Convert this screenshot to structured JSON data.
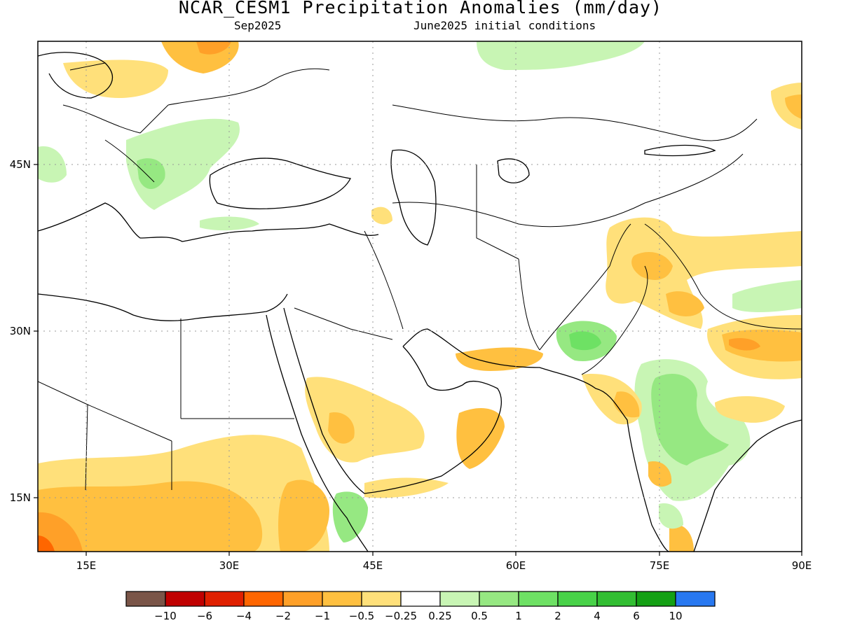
{
  "header": {
    "title": "NCAR_CESM1 Precipitation Anomalies (mm/day)",
    "valid_month": "Sep2025",
    "initial_conditions": "June2025 initial conditions"
  },
  "map": {
    "lon_ticks": [
      "15E",
      "30E",
      "45E",
      "60E",
      "75E",
      "90E"
    ],
    "lat_ticks": [
      "45N",
      "30N",
      "15N"
    ],
    "extent": {
      "lon": [
        10,
        90
      ],
      "lat": [
        10,
        56
      ]
    }
  },
  "colorbar": {
    "labels": [
      "−10",
      "−6",
      "−4",
      "−2",
      "−1",
      "−0.5",
      "−0.25",
      "0.25",
      "0.5",
      "1",
      "2",
      "4",
      "6",
      "10"
    ],
    "colors": [
      "#7a5548",
      "#c00000",
      "#e02000",
      "#ff6600",
      "#ffa028",
      "#ffc040",
      "#ffe07a",
      "#ffffff",
      "#c8f5b4",
      "#96e882",
      "#6ee164",
      "#48d248",
      "#32be32",
      "#14a014",
      "#2878f0"
    ]
  },
  "chart_data": {
    "type": "heatmap",
    "title": "NCAR_CESM1 Precipitation Anomalies (mm/day)",
    "subtitle": "Sep2025 — June2025 initial conditions",
    "x_axis": {
      "ticks": [
        "15E",
        "30E",
        "45E",
        "60E",
        "75E",
        "90E"
      ],
      "range": [
        10,
        90
      ]
    },
    "y_axis": {
      "ticks": [
        "15N",
        "30N",
        "45N"
      ],
      "range": [
        10,
        56
      ]
    },
    "levels": [
      -10,
      -6,
      -4,
      -2,
      -1,
      -0.5,
      -0.25,
      0.25,
      0.5,
      1,
      2,
      4,
      6,
      10
    ],
    "grid": true,
    "regions": [
      {
        "area": "North India / Nepal / Tibet",
        "anomaly": "-1 to -2"
      },
      {
        "area": "Central India / Bay of Bengal",
        "anomaly": "+0.5 to +1"
      },
      {
        "area": "Pakistan / Afghanistan border",
        "anomaly": "+0.5 to +1"
      },
      {
        "area": "Arabian Peninsula interior",
        "anomaly": "-0.25 to -0.5"
      },
      {
        "area": "Sahel / Sudan",
        "anomaly": "-0.5 to -2"
      },
      {
        "area": "Balkans / Romania",
        "anomaly": "+0.25 to +0.5"
      },
      {
        "area": "Eastern Europe",
        "anomaly": "-0.25 to -1"
      }
    ]
  }
}
